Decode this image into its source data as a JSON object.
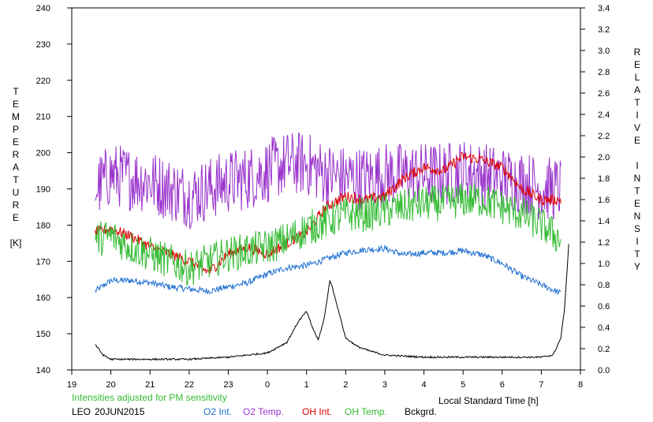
{
  "chart_data": {
    "type": "line",
    "station": "LEO",
    "date": "20JUN2015",
    "note": "Intensities adjusted for PM sensitivity",
    "xlabel": "Local Standard Time [h]",
    "ylabel_left": [
      "T",
      "E",
      "M",
      "P",
      "E",
      "R",
      "A",
      "T",
      "U",
      "R",
      "E",
      "",
      "[K]"
    ],
    "ylabel_right": [
      "R",
      "E",
      "L",
      "A",
      "T",
      "I",
      "V",
      "E",
      "",
      "I",
      "N",
      "T",
      "E",
      "N",
      "S",
      "I",
      "T",
      "Y"
    ],
    "x_ticks": [
      "19",
      "20",
      "21",
      "22",
      "23",
      "0",
      "1",
      "2",
      "3",
      "4",
      "5",
      "6",
      "7",
      "8"
    ],
    "y_left_ticks": [
      "140",
      "150",
      "160",
      "170",
      "180",
      "190",
      "200",
      "210",
      "220",
      "230",
      "240"
    ],
    "y_right_ticks": [
      "0.0",
      "0.2",
      "0.4",
      "0.6",
      "0.8",
      "1.0",
      "1.2",
      "1.4",
      "1.6",
      "1.8",
      "2.0",
      "2.2",
      "2.4",
      "2.6",
      "2.8",
      "3.0",
      "3.2",
      "3.4"
    ],
    "xlim": [
      19,
      32
    ],
    "ylim_left": [
      140,
      240
    ],
    "ylim_right": [
      0.0,
      3.4
    ],
    "grid": false,
    "legend_placement": "bottom",
    "series": [
      {
        "name": "O2 Int.",
        "color": "#1f6fd0",
        "axis": "right",
        "noise": 0.03,
        "x": [
          19.6,
          20.0,
          20.5,
          21.0,
          21.5,
          22.0,
          22.5,
          23.0,
          23.5,
          24.0,
          24.5,
          25.0,
          25.5,
          26.0,
          26.5,
          27.0,
          27.5,
          28.0,
          28.5,
          29.0,
          29.5,
          30.0,
          30.5,
          31.0,
          31.5
        ],
        "values": [
          0.74,
          0.84,
          0.84,
          0.82,
          0.78,
          0.76,
          0.74,
          0.78,
          0.82,
          0.9,
          0.96,
          0.98,
          1.04,
          1.1,
          1.13,
          1.14,
          1.08,
          1.1,
          1.1,
          1.12,
          1.08,
          1.0,
          0.88,
          0.8,
          0.72
        ]
      },
      {
        "name": "O2 Temp.",
        "color": "#9933cc",
        "axis": "left",
        "noise": 9,
        "x": [
          19.6,
          20.0,
          20.5,
          21.0,
          21.5,
          22.0,
          22.5,
          23.0,
          23.5,
          24.0,
          24.5,
          25.0,
          25.5,
          26.0,
          26.5,
          27.0,
          27.5,
          28.0,
          28.5,
          29.0,
          29.5,
          30.0,
          30.5,
          31.0,
          31.5
        ],
        "values": [
          190,
          194,
          193,
          192,
          190,
          188,
          190,
          192,
          193,
          195,
          197,
          197,
          194,
          193,
          193,
          194,
          194,
          194,
          194,
          195,
          194,
          193,
          192,
          190,
          190
        ]
      },
      {
        "name": "OH Int.",
        "color": "#dd0000",
        "axis": "left",
        "noise": 1.5,
        "x": [
          19.6,
          20.0,
          20.5,
          21.0,
          21.5,
          22.0,
          22.5,
          23.0,
          23.5,
          24.0,
          24.5,
          25.0,
          25.5,
          26.0,
          26.5,
          27.0,
          27.5,
          28.0,
          28.5,
          29.0,
          29.5,
          30.0,
          30.5,
          31.0,
          31.5
        ],
        "values": [
          178,
          179,
          177,
          174,
          172,
          170,
          167,
          172,
          174,
          172,
          175,
          178,
          185,
          188,
          187,
          188,
          193,
          196,
          195,
          199,
          198,
          196,
          190,
          187,
          187
        ]
      },
      {
        "name": "OH Temp.",
        "color": "#33bb33",
        "axis": "left",
        "noise": 5,
        "x": [
          19.6,
          20.0,
          20.5,
          21.0,
          21.5,
          22.0,
          22.5,
          23.0,
          23.5,
          24.0,
          24.5,
          25.0,
          25.5,
          26.0,
          26.5,
          27.0,
          27.5,
          28.0,
          28.5,
          29.0,
          29.5,
          30.0,
          30.5,
          31.0,
          31.5
        ],
        "values": [
          176,
          177,
          174,
          172,
          170,
          168,
          170,
          172,
          173,
          174,
          176,
          179,
          181,
          183,
          183,
          184,
          185,
          186,
          186,
          187,
          187,
          185,
          183,
          180,
          176
        ]
      },
      {
        "name": "Bckgrd.",
        "color": "#000000",
        "axis": "right",
        "noise": 0.008,
        "x": [
          19.6,
          19.8,
          20.0,
          21.0,
          22.0,
          23.0,
          24.0,
          24.5,
          24.8,
          25.0,
          25.15,
          25.3,
          25.45,
          25.6,
          25.75,
          26.0,
          26.3,
          26.6,
          27.0,
          28.0,
          29.0,
          30.0,
          31.0,
          31.3,
          31.5,
          31.6,
          31.7
        ],
        "values": [
          0.24,
          0.14,
          0.1,
          0.1,
          0.1,
          0.12,
          0.16,
          0.26,
          0.46,
          0.55,
          0.4,
          0.28,
          0.48,
          0.85,
          0.65,
          0.3,
          0.22,
          0.18,
          0.14,
          0.12,
          0.12,
          0.12,
          0.12,
          0.14,
          0.3,
          0.6,
          1.18
        ]
      }
    ]
  }
}
